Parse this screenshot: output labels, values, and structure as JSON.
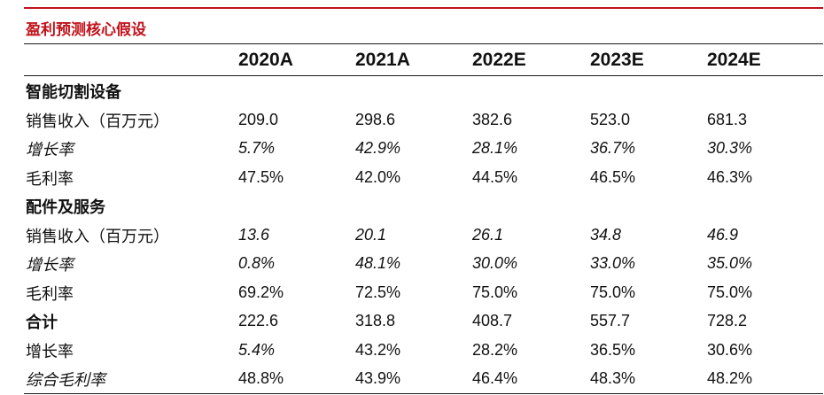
{
  "title": "盈利预测核心假设",
  "colors": {
    "accent": "#c0121b",
    "text": "#111111"
  },
  "columns": [
    "2020A",
    "2021A",
    "2022E",
    "2023E",
    "2024E"
  ],
  "rows": [
    {
      "label": "智能切割设备",
      "label_style": "bold",
      "value_style": "normal",
      "values": [
        "",
        "",
        "",
        "",
        ""
      ]
    },
    {
      "label": "销售收入（百万元）",
      "label_style": "normal",
      "value_style": "normal",
      "values": [
        "209.0",
        "298.6",
        "382.6",
        "523.0",
        "681.3"
      ]
    },
    {
      "label": "增长率",
      "label_style": "italic",
      "value_style": "italic",
      "values": [
        "5.7%",
        "42.9%",
        "28.1%",
        "36.7%",
        "30.3%"
      ]
    },
    {
      "label": "毛利率",
      "label_style": "normal",
      "value_style": "normal",
      "values": [
        "47.5%",
        "42.0%",
        "44.5%",
        "46.5%",
        "46.3%"
      ]
    },
    {
      "label": "配件及服务",
      "label_style": "bold",
      "value_style": "normal",
      "values": [
        "",
        "",
        "",
        "",
        ""
      ]
    },
    {
      "label": "销售收入（百万元）",
      "label_style": "normal",
      "value_style": "italic",
      "values": [
        "13.6",
        "20.1",
        "26.1",
        "34.8",
        "46.9"
      ]
    },
    {
      "label": "增长率",
      "label_style": "italic",
      "value_style": "italic",
      "values": [
        "0.8%",
        "48.1%",
        "30.0%",
        "33.0%",
        "35.0%"
      ]
    },
    {
      "label": "毛利率",
      "label_style": "normal",
      "value_style": "normal",
      "values": [
        "69.2%",
        "72.5%",
        "75.0%",
        "75.0%",
        "75.0%"
      ]
    },
    {
      "label": "合计",
      "label_style": "bold",
      "value_style": "normal",
      "values": [
        "222.6",
        "318.8",
        "408.7",
        "557.7",
        "728.2"
      ]
    },
    {
      "label": "增长率",
      "label_style": "normal",
      "value_style": "mixed-first-italic",
      "values": [
        "5.4%",
        "43.2%",
        "28.2%",
        "36.5%",
        "30.6%"
      ]
    },
    {
      "label": "综合毛利率",
      "label_style": "italic",
      "value_style": "normal",
      "values": [
        "48.8%",
        "43.9%",
        "46.4%",
        "48.3%",
        "48.2%"
      ]
    }
  ]
}
